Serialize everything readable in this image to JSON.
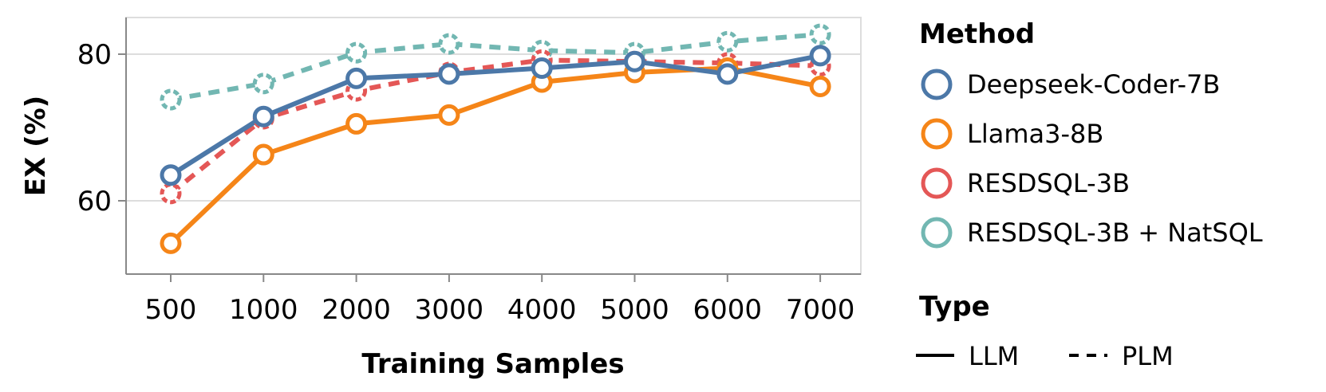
{
  "chart_data": {
    "type": "line",
    "xlabel": "Training Samples",
    "ylabel": "EX (%)",
    "categories": [
      "500",
      "1000",
      "2000",
      "3000",
      "4000",
      "5000",
      "6000",
      "7000"
    ],
    "yticks": [
      60,
      80
    ],
    "ylim": [
      50,
      85
    ],
    "grid": true,
    "series": [
      {
        "name": "Deepseek-Coder-7B",
        "type": "LLM",
        "color": "#4c78a8",
        "values": [
          63.5,
          71.5,
          76.7,
          77.3,
          78.1,
          79.0,
          77.3,
          79.8
        ]
      },
      {
        "name": "Llama3-8B",
        "type": "LLM",
        "color": "#f58518",
        "values": [
          54.2,
          66.3,
          70.5,
          71.7,
          76.2,
          77.5,
          78.1,
          75.6
        ]
      },
      {
        "name": "RESDSQL-3B",
        "type": "PLM",
        "color": "#e45756",
        "values": [
          61.0,
          71.2,
          75.0,
          77.5,
          79.2,
          79.0,
          78.8,
          78.4
        ]
      },
      {
        "name": "RESDSQL-3B + NatSQL",
        "type": "PLM",
        "color": "#72b7b2",
        "values": [
          73.8,
          76.0,
          80.2,
          81.4,
          80.5,
          80.2,
          81.7,
          82.7
        ]
      }
    ],
    "legend": {
      "placement": "right",
      "method_title": "Method",
      "type_title": "Type",
      "types": [
        {
          "label": "LLM",
          "dash": "solid"
        },
        {
          "label": "PLM",
          "dash": "dashed"
        }
      ]
    }
  }
}
